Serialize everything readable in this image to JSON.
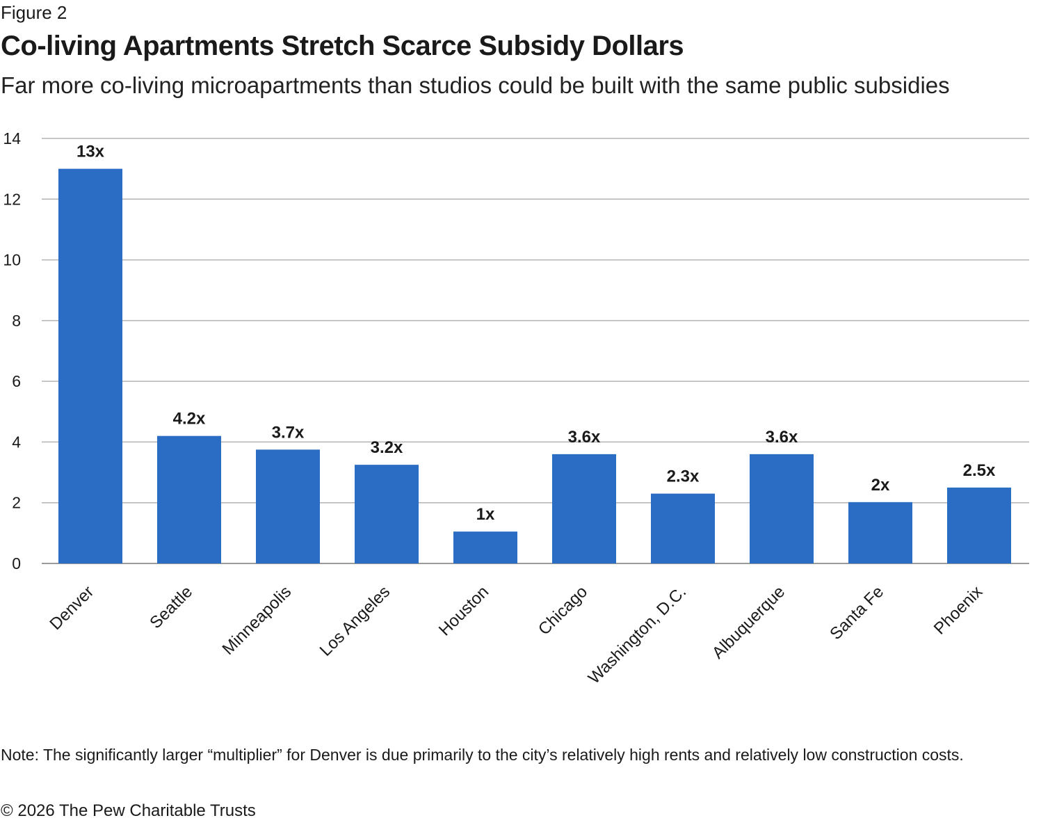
{
  "figure_label": "Figure 2",
  "title": "Co-living Apartments Stretch Scarce Subsidy Dollars",
  "subtitle": "Far more co-living microapartments than studios could be built with the same public subsidies",
  "note": "Note: The significantly larger “multiplier” for Denver is due primarily to the city’s relatively high rents and relatively low construction costs.",
  "copyright": "© 2026 The Pew Charitable Trusts",
  "colors": {
    "bar": "#2b6cc4",
    "grid": "#b3b3b3",
    "axis": "#9a9a9a"
  },
  "chart_data": {
    "type": "bar",
    "title": "Co-living Apartments Stretch Scarce Subsidy Dollars",
    "xlabel": "",
    "ylabel": "",
    "ylim": [
      0,
      14
    ],
    "yticks": [
      0,
      2,
      4,
      6,
      8,
      10,
      12,
      14
    ],
    "grid": true,
    "categories": [
      "Denver",
      "Seattle",
      "Minneapolis",
      "Los Angeles",
      "Houston",
      "Chicago",
      "Washington, D.C.",
      "Albuquerque",
      "Santa Fe",
      "Phoenix"
    ],
    "values": [
      13,
      4.2,
      3.75,
      3.25,
      1.05,
      3.6,
      2.3,
      3.6,
      2.02,
      2.5
    ],
    "data_labels": [
      "13x",
      "4.2x",
      "3.7x",
      "3.2x",
      "1x",
      "3.6x",
      "2.3x",
      "3.6x",
      "2x",
      "2.5x"
    ]
  }
}
